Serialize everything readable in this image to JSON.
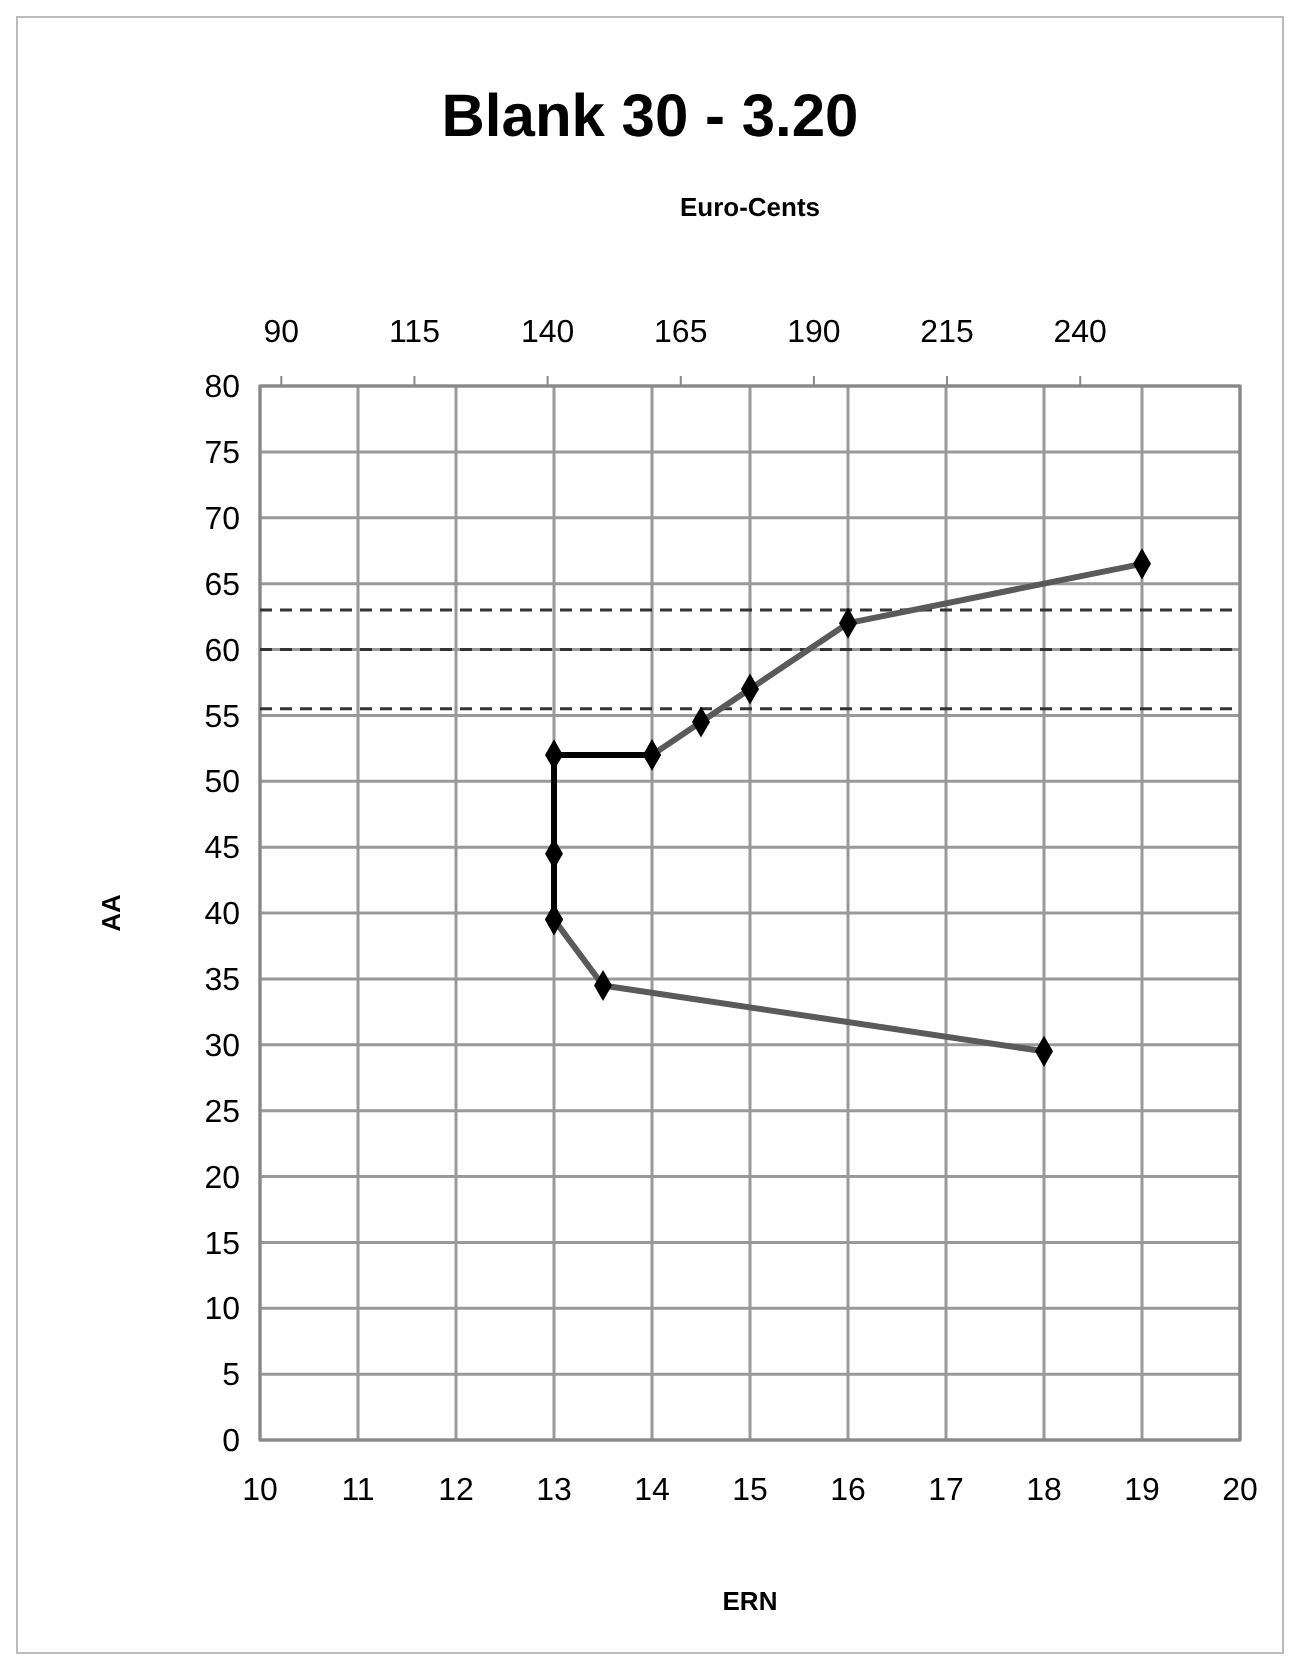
{
  "chart_data": {
    "type": "line",
    "title": "Blank 30 - 3.20",
    "xlabel": "ERN",
    "ylabel": "AA",
    "x2label": "Euro-Cents",
    "xlim": [
      10,
      20
    ],
    "xticks": [
      10,
      11,
      12,
      13,
      14,
      15,
      16,
      17,
      18,
      19,
      20
    ],
    "x2lim": [
      86,
      270
    ],
    "x2ticks": [
      90,
      115,
      140,
      165,
      190,
      215,
      240
    ],
    "ylim": [
      0,
      80
    ],
    "yticks": [
      0,
      5,
      10,
      15,
      20,
      25,
      30,
      35,
      40,
      45,
      50,
      55,
      60,
      65,
      70,
      75,
      80
    ],
    "grid": true,
    "marker": "diamond",
    "series": [
      {
        "color": "#5a5a5a",
        "x": [
          13,
          13.5,
          18
        ],
        "values": [
          39.5,
          34.5,
          29.5
        ]
      },
      {
        "color": "#000000",
        "x": [
          13,
          13,
          13,
          14
        ],
        "values": [
          39.5,
          44.5,
          52,
          52
        ]
      },
      {
        "color": "#5a5a5a",
        "x": [
          14,
          14.5,
          15,
          16,
          19
        ],
        "values": [
          52,
          54.5,
          57,
          62,
          66.5
        ]
      }
    ],
    "ref_lines": [
      {
        "axis": "y",
        "value": 63,
        "color": "#333333",
        "line_style": "dashed"
      },
      {
        "axis": "y",
        "value": 60,
        "color": "#333333",
        "line_style": "dashed"
      },
      {
        "axis": "y",
        "value": 55.5,
        "color": "#333333",
        "line_style": "dashed"
      }
    ]
  }
}
